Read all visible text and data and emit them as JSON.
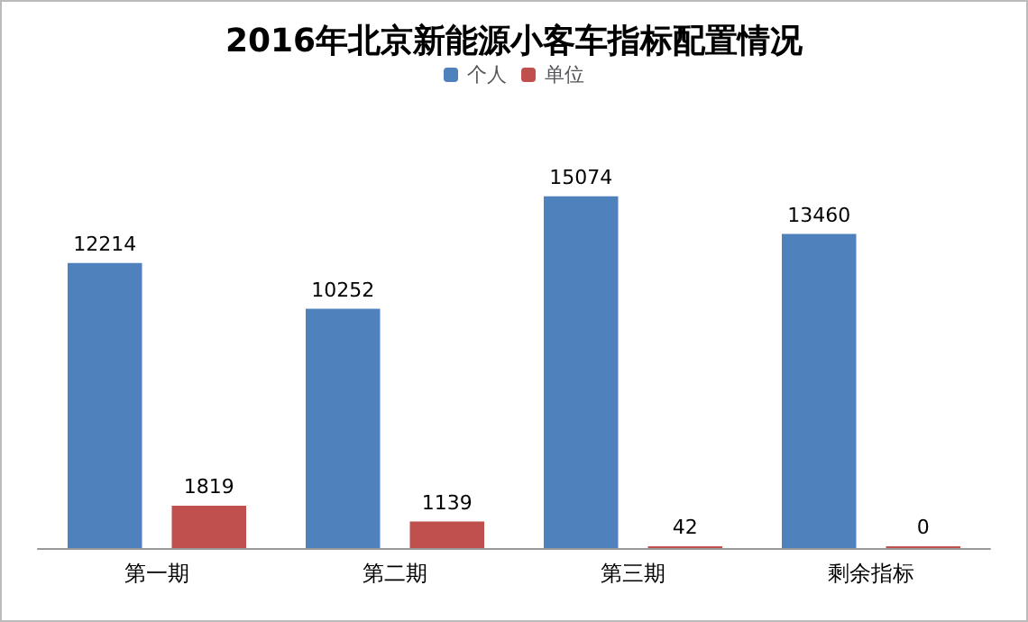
{
  "chart_data": {
    "type": "bar",
    "title": "2016年北京新能源小客车指标配置情况",
    "categories": [
      "第一期",
      "第二期",
      "第三期",
      "剩余指标"
    ],
    "series": [
      {
        "name": "个人",
        "color": "#4f81bd",
        "values": [
          12214,
          10252,
          15074,
          13460
        ]
      },
      {
        "name": "单位",
        "color": "#c0504d",
        "values": [
          1819,
          1139,
          42,
          0
        ]
      }
    ],
    "data_labels": true,
    "legend": "top"
  }
}
